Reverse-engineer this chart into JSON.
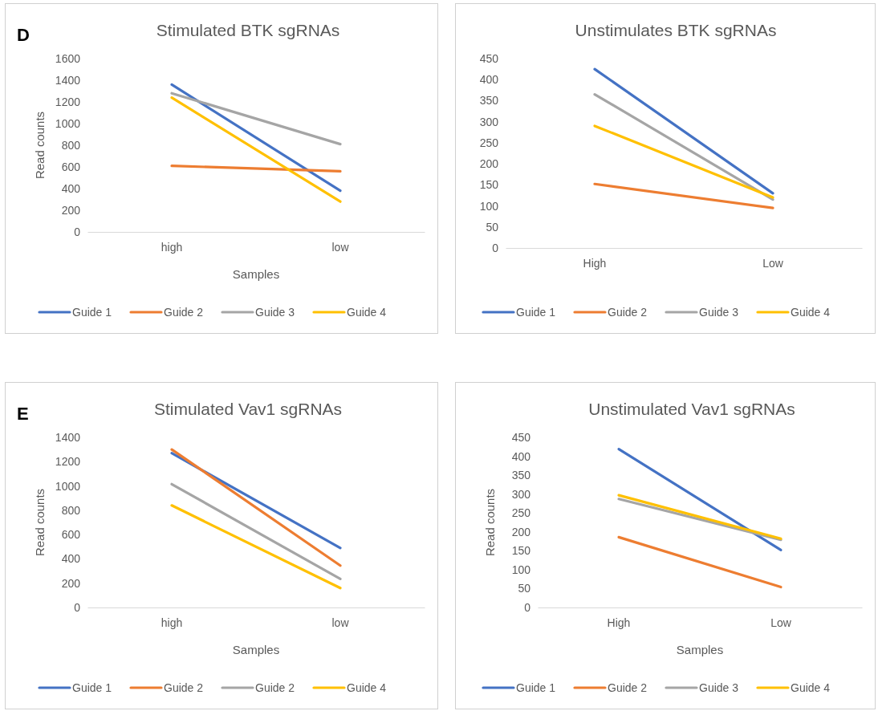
{
  "chart_data": [
    {
      "type": "line",
      "title": "Stimulated BTK sgRNAs",
      "xlabel": "Samples",
      "ylabel": "Read counts",
      "annotations": [
        "D"
      ],
      "categories": [
        "high",
        "low"
      ],
      "ylim": [
        0,
        1600
      ],
      "yticks": [
        0,
        200,
        400,
        600,
        800,
        1000,
        1200,
        1400,
        1600
      ],
      "legend": "bottom",
      "series": [
        {
          "name": "Guide 1",
          "color": "#4472c4",
          "values": [
            1360,
            380
          ]
        },
        {
          "name": "Guide 2",
          "color": "#ed7d31",
          "values": [
            610,
            560
          ]
        },
        {
          "name": "Guide 3",
          "color": "#a5a5a5",
          "values": [
            1280,
            810
          ]
        },
        {
          "name": "Guide 4",
          "color": "#ffc000",
          "values": [
            1240,
            280
          ]
        }
      ]
    },
    {
      "type": "line",
      "title": "Unstimulates BTK sgRNAs",
      "categories": [
        "High",
        "Low"
      ],
      "ylim": [
        0,
        450
      ],
      "yticks": [
        0,
        50,
        100,
        150,
        200,
        250,
        300,
        350,
        400,
        450
      ],
      "legend": "bottom",
      "series": [
        {
          "name": "Guide 1",
          "color": "#4472c4",
          "values": [
            425,
            130
          ]
        },
        {
          "name": "Guide 2",
          "color": "#ed7d31",
          "values": [
            152,
            95
          ]
        },
        {
          "name": "Guide 3",
          "color": "#a5a5a5",
          "values": [
            365,
            115
          ]
        },
        {
          "name": "Guide 4",
          "color": "#ffc000",
          "values": [
            290,
            120
          ]
        }
      ]
    },
    {
      "type": "line",
      "title": "Stimulated Vav1 sgRNAs",
      "xlabel": "Samples",
      "ylabel": "Read counts",
      "annotations": [
        "E"
      ],
      "categories": [
        "high",
        "low"
      ],
      "ylim": [
        0,
        1400
      ],
      "yticks": [
        0,
        200,
        400,
        600,
        800,
        1000,
        1200,
        1400
      ],
      "legend": "bottom",
      "series": [
        {
          "name": "Guide 1",
          "color": "#4472c4",
          "values": [
            1270,
            490
          ]
        },
        {
          "name": "Guide 2",
          "color": "#ed7d31",
          "values": [
            1300,
            345
          ]
        },
        {
          "name": "Guide 2",
          "color": "#a5a5a5",
          "values": [
            1015,
            235
          ]
        },
        {
          "name": "Guide 4",
          "color": "#ffc000",
          "values": [
            840,
            160
          ]
        }
      ]
    },
    {
      "type": "line",
      "title": "Unstimulated Vav1 sgRNAs",
      "xlabel": "Samples",
      "ylabel": "Read counts",
      "categories": [
        "High",
        "Low"
      ],
      "ylim": [
        0,
        450
      ],
      "yticks": [
        0,
        50,
        100,
        150,
        200,
        250,
        300,
        350,
        400,
        450
      ],
      "legend": "bottom",
      "series": [
        {
          "name": "Guide 1",
          "color": "#4472c4",
          "values": [
            419,
            152
          ]
        },
        {
          "name": "Guide 2",
          "color": "#ed7d31",
          "values": [
            186,
            54
          ]
        },
        {
          "name": "Guide 3",
          "color": "#a5a5a5",
          "values": [
            287,
            179
          ]
        },
        {
          "name": "Guide 4",
          "color": "#ffc000",
          "values": [
            297,
            182
          ]
        }
      ]
    }
  ]
}
